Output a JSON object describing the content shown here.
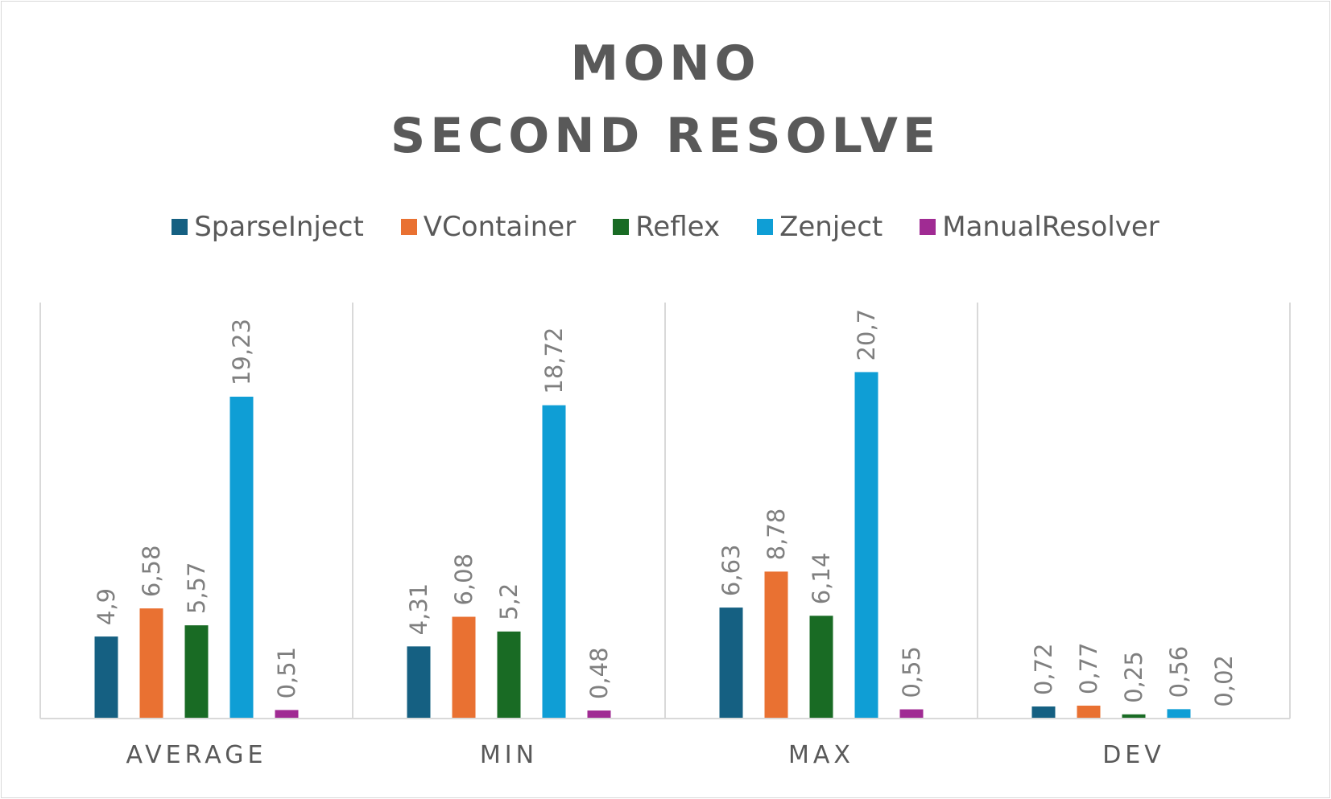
{
  "chart_data": {
    "type": "bar",
    "title_lines": [
      "MONO",
      "SECOND RESOLVE"
    ],
    "categories": [
      "AVERAGE",
      "MIN",
      "MAX",
      "DEV"
    ],
    "series": [
      {
        "name": "SparseInject",
        "color": "#156082",
        "values": [
          4.9,
          4.31,
          6.63,
          0.72
        ],
        "labels": [
          "4,9",
          "4,31",
          "6,63",
          "0,72"
        ]
      },
      {
        "name": "VContainer",
        "color": "#e97132",
        "values": [
          6.58,
          6.08,
          8.78,
          0.77
        ],
        "labels": [
          "6,58",
          "6,08",
          "8,78",
          "0,77"
        ]
      },
      {
        "name": "Reflex",
        "color": "#196b24",
        "values": [
          5.57,
          5.2,
          6.14,
          0.25
        ],
        "labels": [
          "5,57",
          "5,2",
          "6,14",
          "0,25"
        ]
      },
      {
        "name": "Zenject",
        "color": "#0f9ed5",
        "values": [
          19.23,
          18.72,
          20.7,
          0.56
        ],
        "labels": [
          "19,23",
          "18,72",
          "20,7",
          "0,56"
        ]
      },
      {
        "name": "ManualResolver",
        "color": "#a02b93",
        "values": [
          0.51,
          0.48,
          0.55,
          0.02
        ],
        "labels": [
          "0,51",
          "0,48",
          "0,55",
          "0,02"
        ]
      }
    ],
    "legend_position": "top",
    "grid": "vertical-category-separators"
  }
}
